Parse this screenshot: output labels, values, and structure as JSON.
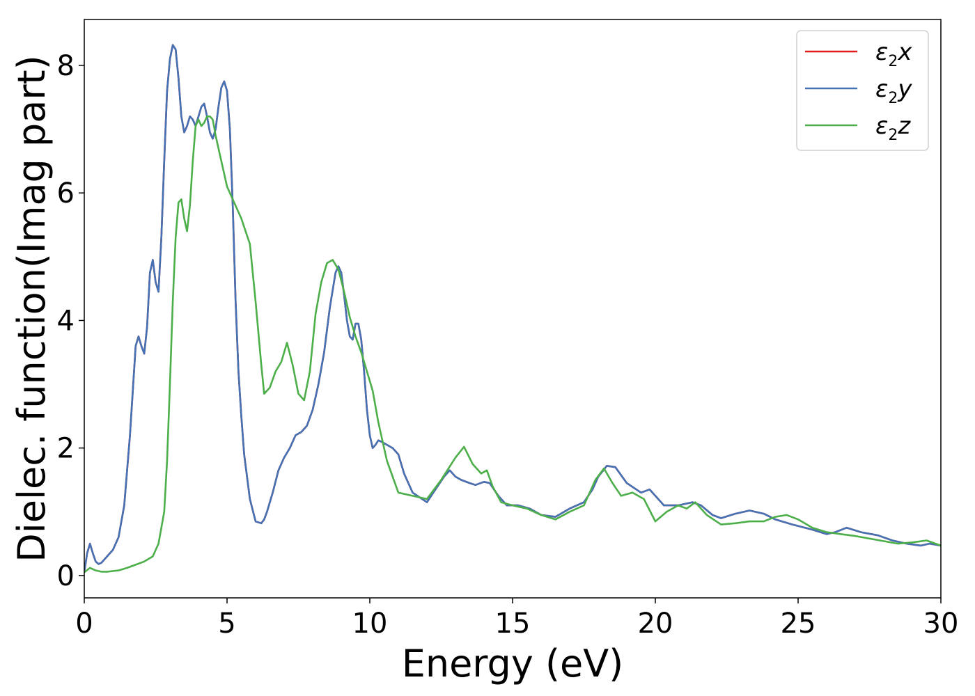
{
  "chart_data": {
    "type": "line",
    "title": "",
    "xlabel": "Energy (eV)",
    "ylabel": "Dielec. function(Imag part)",
    "xlim": [
      0,
      30
    ],
    "ylim": [
      -0.35,
      8.72
    ],
    "xticks": [
      0,
      5,
      10,
      15,
      20,
      25,
      30
    ],
    "yticks": [
      0,
      2,
      4,
      6,
      8
    ],
    "grid": false,
    "legend_position": "top-right",
    "series": [
      {
        "name": "ε2x",
        "legend_main": "ε",
        "legend_sub": "2",
        "legend_var": "x",
        "color": "#e41a1c",
        "x": [
          0.0,
          0.1,
          0.2,
          0.3,
          0.4,
          0.5,
          0.6,
          0.7,
          0.8,
          1.0,
          1.2,
          1.4,
          1.6,
          1.8,
          1.9,
          2.0,
          2.1,
          2.2,
          2.3,
          2.4,
          2.5,
          2.6,
          2.7,
          2.8,
          2.9,
          3.0,
          3.1,
          3.2,
          3.3,
          3.4,
          3.5,
          3.6,
          3.7,
          3.8,
          3.9,
          4.0,
          4.1,
          4.2,
          4.3,
          4.4,
          4.5,
          4.6,
          4.7,
          4.8,
          4.9,
          5.0,
          5.1,
          5.2,
          5.3,
          5.4,
          5.5,
          5.6,
          5.8,
          6.0,
          6.2,
          6.3,
          6.4,
          6.6,
          6.8,
          7.0,
          7.2,
          7.4,
          7.6,
          7.8,
          8.0,
          8.2,
          8.4,
          8.6,
          8.8,
          8.9,
          9.0,
          9.1,
          9.2,
          9.3,
          9.4,
          9.5,
          9.6,
          9.7,
          9.8,
          9.9,
          10.0,
          10.1,
          10.2,
          10.3,
          10.4,
          10.6,
          10.8,
          11.0,
          11.2,
          11.5,
          12.0,
          12.3,
          12.6,
          12.8,
          13.0,
          13.2,
          13.5,
          13.7,
          14.0,
          14.2,
          14.5,
          14.8,
          15.2,
          15.6,
          16.0,
          16.5,
          17.0,
          17.5,
          17.8,
          18.0,
          18.3,
          18.6,
          19.0,
          19.5,
          19.8,
          20.0,
          20.3,
          20.8,
          21.3,
          21.6,
          22.0,
          22.3,
          22.8,
          23.3,
          23.8,
          24.2,
          24.8,
          25.5,
          26.0,
          26.3,
          26.7,
          27.2,
          27.8,
          28.3,
          28.8,
          29.3,
          29.6,
          30.0
        ],
        "y": [
          0.05,
          0.35,
          0.5,
          0.35,
          0.22,
          0.18,
          0.2,
          0.25,
          0.3,
          0.4,
          0.6,
          1.1,
          2.2,
          3.6,
          3.75,
          3.6,
          3.48,
          3.9,
          4.75,
          4.95,
          4.6,
          4.45,
          5.3,
          6.5,
          7.6,
          8.1,
          8.32,
          8.25,
          7.8,
          7.2,
          6.95,
          7.05,
          7.2,
          7.15,
          7.05,
          7.2,
          7.35,
          7.4,
          7.2,
          6.95,
          6.85,
          7.0,
          7.35,
          7.65,
          7.75,
          7.6,
          7.0,
          5.8,
          4.3,
          3.2,
          2.5,
          1.9,
          1.2,
          0.85,
          0.82,
          0.88,
          1.0,
          1.3,
          1.65,
          1.85,
          2.0,
          2.2,
          2.25,
          2.35,
          2.6,
          3.0,
          3.5,
          4.2,
          4.75,
          4.85,
          4.75,
          4.4,
          4.0,
          3.75,
          3.7,
          3.95,
          3.95,
          3.7,
          3.2,
          2.6,
          2.2,
          2.0,
          2.05,
          2.12,
          2.1,
          2.05,
          2.0,
          1.9,
          1.6,
          1.3,
          1.15,
          1.35,
          1.55,
          1.65,
          1.55,
          1.5,
          1.45,
          1.42,
          1.47,
          1.45,
          1.25,
          1.1,
          1.1,
          1.05,
          0.95,
          0.92,
          1.05,
          1.15,
          1.35,
          1.55,
          1.72,
          1.7,
          1.45,
          1.3,
          1.35,
          1.25,
          1.1,
          1.1,
          1.15,
          1.1,
          0.95,
          0.9,
          0.97,
          1.02,
          0.97,
          0.88,
          0.8,
          0.72,
          0.65,
          0.68,
          0.75,
          0.68,
          0.63,
          0.55,
          0.5,
          0.47,
          0.5,
          0.47
        ]
      },
      {
        "name": "ε2y",
        "legend_main": "ε",
        "legend_sub": "2",
        "legend_var": "y",
        "color": "#4472b4",
        "x": [
          0.0,
          0.1,
          0.2,
          0.3,
          0.4,
          0.5,
          0.6,
          0.7,
          0.8,
          1.0,
          1.2,
          1.4,
          1.6,
          1.8,
          1.9,
          2.0,
          2.1,
          2.2,
          2.3,
          2.4,
          2.5,
          2.6,
          2.7,
          2.8,
          2.9,
          3.0,
          3.1,
          3.2,
          3.3,
          3.4,
          3.5,
          3.6,
          3.7,
          3.8,
          3.9,
          4.0,
          4.1,
          4.2,
          4.3,
          4.4,
          4.5,
          4.6,
          4.7,
          4.8,
          4.9,
          5.0,
          5.1,
          5.2,
          5.3,
          5.4,
          5.5,
          5.6,
          5.8,
          6.0,
          6.2,
          6.3,
          6.4,
          6.6,
          6.8,
          7.0,
          7.2,
          7.4,
          7.6,
          7.8,
          8.0,
          8.2,
          8.4,
          8.6,
          8.8,
          8.9,
          9.0,
          9.1,
          9.2,
          9.3,
          9.4,
          9.5,
          9.6,
          9.7,
          9.8,
          9.9,
          10.0,
          10.1,
          10.2,
          10.3,
          10.4,
          10.6,
          10.8,
          11.0,
          11.2,
          11.5,
          12.0,
          12.3,
          12.6,
          12.8,
          13.0,
          13.2,
          13.5,
          13.7,
          14.0,
          14.2,
          14.5,
          14.8,
          15.2,
          15.6,
          16.0,
          16.5,
          17.0,
          17.5,
          17.8,
          18.0,
          18.3,
          18.6,
          19.0,
          19.5,
          19.8,
          20.0,
          20.3,
          20.8,
          21.3,
          21.6,
          22.0,
          22.3,
          22.8,
          23.3,
          23.8,
          24.2,
          24.8,
          25.5,
          26.0,
          26.3,
          26.7,
          27.2,
          27.8,
          28.3,
          28.8,
          29.3,
          29.6,
          30.0
        ],
        "y": [
          0.05,
          0.35,
          0.5,
          0.35,
          0.22,
          0.18,
          0.2,
          0.25,
          0.3,
          0.4,
          0.6,
          1.1,
          2.2,
          3.6,
          3.75,
          3.6,
          3.48,
          3.9,
          4.75,
          4.95,
          4.6,
          4.45,
          5.3,
          6.5,
          7.6,
          8.1,
          8.32,
          8.25,
          7.8,
          7.2,
          6.95,
          7.05,
          7.2,
          7.15,
          7.05,
          7.2,
          7.35,
          7.4,
          7.2,
          6.95,
          6.85,
          7.0,
          7.35,
          7.65,
          7.75,
          7.6,
          7.0,
          5.8,
          4.3,
          3.2,
          2.5,
          1.9,
          1.2,
          0.85,
          0.82,
          0.88,
          1.0,
          1.3,
          1.65,
          1.85,
          2.0,
          2.2,
          2.25,
          2.35,
          2.6,
          3.0,
          3.5,
          4.2,
          4.75,
          4.85,
          4.75,
          4.4,
          4.0,
          3.75,
          3.7,
          3.95,
          3.95,
          3.7,
          3.2,
          2.6,
          2.2,
          2.0,
          2.05,
          2.12,
          2.1,
          2.05,
          2.0,
          1.9,
          1.6,
          1.3,
          1.15,
          1.35,
          1.55,
          1.65,
          1.55,
          1.5,
          1.45,
          1.42,
          1.47,
          1.45,
          1.25,
          1.1,
          1.1,
          1.05,
          0.95,
          0.92,
          1.05,
          1.15,
          1.35,
          1.55,
          1.72,
          1.7,
          1.45,
          1.3,
          1.35,
          1.25,
          1.1,
          1.1,
          1.15,
          1.1,
          0.95,
          0.9,
          0.97,
          1.02,
          0.97,
          0.88,
          0.8,
          0.72,
          0.65,
          0.68,
          0.75,
          0.68,
          0.63,
          0.55,
          0.5,
          0.47,
          0.5,
          0.47
        ]
      },
      {
        "name": "ε2z",
        "legend_main": "ε",
        "legend_sub": "2",
        "legend_var": "z",
        "color": "#4daf4a",
        "x": [
          0.0,
          0.2,
          0.4,
          0.6,
          0.8,
          1.0,
          1.2,
          1.5,
          1.8,
          2.1,
          2.4,
          2.6,
          2.8,
          2.9,
          3.0,
          3.1,
          3.2,
          3.3,
          3.4,
          3.5,
          3.6,
          3.7,
          3.8,
          3.9,
          4.0,
          4.1,
          4.2,
          4.3,
          4.4,
          4.5,
          4.6,
          4.7,
          4.8,
          4.9,
          5.0,
          5.2,
          5.5,
          5.8,
          6.0,
          6.2,
          6.3,
          6.5,
          6.7,
          6.9,
          7.1,
          7.3,
          7.5,
          7.7,
          7.9,
          8.1,
          8.3,
          8.5,
          8.7,
          8.9,
          9.1,
          9.3,
          9.5,
          9.7,
          9.9,
          10.1,
          10.3,
          10.6,
          11.0,
          11.5,
          12.0,
          12.5,
          13.0,
          13.3,
          13.6,
          13.9,
          14.1,
          14.3,
          14.6,
          15.0,
          15.5,
          16.0,
          16.5,
          17.0,
          17.5,
          17.9,
          18.2,
          18.5,
          18.8,
          19.2,
          19.6,
          20.0,
          20.4,
          20.8,
          21.1,
          21.4,
          21.8,
          22.3,
          22.8,
          23.3,
          23.8,
          24.2,
          24.6,
          25.0,
          25.5,
          26.0,
          26.5,
          27.0,
          27.5,
          28.0,
          28.5,
          29.0,
          29.5,
          30.0
        ],
        "y": [
          0.05,
          0.12,
          0.08,
          0.06,
          0.06,
          0.07,
          0.08,
          0.12,
          0.17,
          0.22,
          0.3,
          0.5,
          1.0,
          1.8,
          3.0,
          4.3,
          5.3,
          5.85,
          5.9,
          5.6,
          5.4,
          5.8,
          6.5,
          7.05,
          7.15,
          7.05,
          7.1,
          7.2,
          7.2,
          7.15,
          6.9,
          6.7,
          6.5,
          6.3,
          6.1,
          5.9,
          5.6,
          5.2,
          4.3,
          3.3,
          2.85,
          2.95,
          3.2,
          3.35,
          3.65,
          3.3,
          2.85,
          2.75,
          3.2,
          4.1,
          4.6,
          4.9,
          4.95,
          4.8,
          4.45,
          4.05,
          3.75,
          3.5,
          3.2,
          2.9,
          2.4,
          1.8,
          1.3,
          1.25,
          1.2,
          1.5,
          1.85,
          2.02,
          1.75,
          1.6,
          1.65,
          1.4,
          1.15,
          1.1,
          1.05,
          0.95,
          0.88,
          1.0,
          1.1,
          1.5,
          1.68,
          1.45,
          1.25,
          1.3,
          1.2,
          0.85,
          1.0,
          1.1,
          1.05,
          1.15,
          0.95,
          0.8,
          0.82,
          0.85,
          0.85,
          0.92,
          0.95,
          0.88,
          0.75,
          0.68,
          0.65,
          0.62,
          0.58,
          0.54,
          0.5,
          0.52,
          0.55,
          0.47
        ]
      }
    ]
  }
}
